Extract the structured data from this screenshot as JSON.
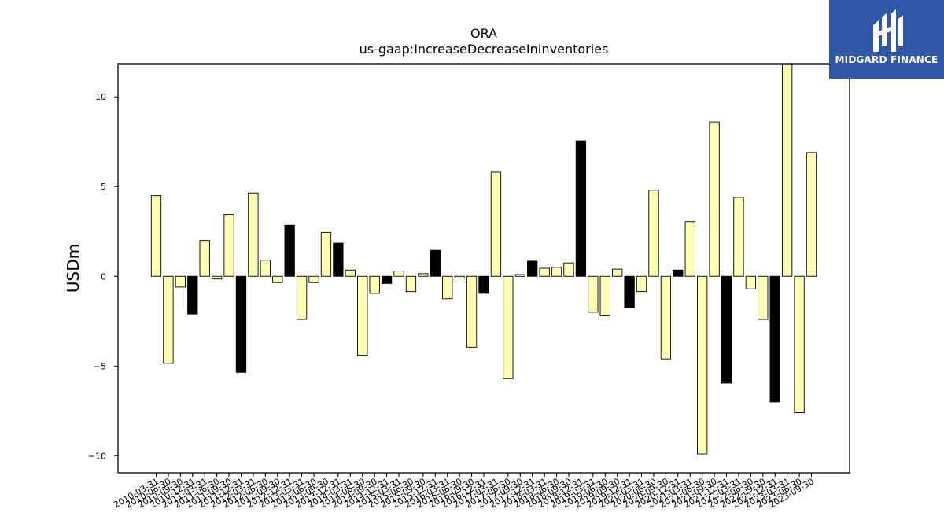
{
  "brand": {
    "name": "MIDGARD FINANCE",
    "color": "#2f58a8"
  },
  "chart_data": {
    "type": "bar",
    "title": "ORA",
    "subtitle": "us-gaap:IncreaseDecreaseInInventories",
    "xlabel": "",
    "ylabel": "USDm",
    "ylim": [
      -10.95,
      11.85
    ],
    "yticks": [
      -10,
      -5,
      0,
      5,
      10
    ],
    "ytick_labels": [
      "−10",
      "−5",
      "0",
      "5",
      "10"
    ],
    "grid": false,
    "colors": {
      "quarter": "#ffffb3",
      "year_end": "#000000",
      "edge": "#000000"
    },
    "categories": [
      "2010-03-31",
      "2010-06-30",
      "2010-09-30",
      "2010-12-31",
      "2011-03-31",
      "2011-06-30",
      "2011-09-30",
      "2011-12-31",
      "2012-03-31",
      "2012-06-30",
      "2012-09-30",
      "2012-12-31",
      "2013-03-31",
      "2013-06-30",
      "2013-09-30",
      "2013-12-31",
      "2014-03-31",
      "2014-06-30",
      "2014-09-30",
      "2014-12-31",
      "2015-03-31",
      "2015-06-30",
      "2015-09-30",
      "2015-12-31",
      "2016-03-31",
      "2016-06-30",
      "2016-09-30",
      "2016-12-31",
      "2017-03-31",
      "2017-06-30",
      "2017-09-30",
      "2017-12-31",
      "2018-03-31",
      "2018-06-30",
      "2018-09-30",
      "2018-12-31",
      "2019-03-31",
      "2019-06-30",
      "2019-09-30",
      "2019-12-31",
      "2020-03-31",
      "2020-06-30",
      "2020-09-30",
      "2020-12-31",
      "2021-03-31",
      "2021-06-30",
      "2021-09-30",
      "2021-12-31",
      "2022-03-31",
      "2022-06-30",
      "2022-09-30",
      "2022-12-31",
      "2023-03-31",
      "2023-06-30",
      "2023-09-30"
    ],
    "values": [
      4.5,
      -4.85,
      -0.6,
      -2.1,
      2.0,
      -0.15,
      3.45,
      -5.35,
      4.65,
      0.9,
      -0.35,
      2.85,
      -2.4,
      -0.35,
      2.45,
      1.85,
      0.35,
      -4.4,
      -0.95,
      -0.4,
      0.3,
      -0.85,
      0.15,
      1.45,
      -1.25,
      -0.1,
      -3.95,
      -0.95,
      5.8,
      -5.7,
      0.1,
      0.85,
      0.45,
      0.5,
      0.75,
      7.55,
      -2.0,
      -2.2,
      0.4,
      -1.75,
      -0.85,
      4.8,
      -4.6,
      0.35,
      3.05,
      -9.9,
      8.6,
      -5.95,
      4.4,
      -0.7,
      -2.4,
      -7.0,
      11.9,
      -7.6,
      6.9
    ],
    "year_end": [
      false,
      false,
      false,
      true,
      false,
      false,
      false,
      true,
      false,
      false,
      false,
      true,
      false,
      false,
      false,
      true,
      false,
      false,
      false,
      true,
      false,
      false,
      false,
      true,
      false,
      false,
      false,
      true,
      false,
      false,
      false,
      true,
      false,
      false,
      false,
      true,
      false,
      false,
      false,
      true,
      false,
      false,
      false,
      true,
      false,
      false,
      false,
      true,
      false,
      false,
      false,
      true,
      false,
      false,
      false
    ]
  }
}
